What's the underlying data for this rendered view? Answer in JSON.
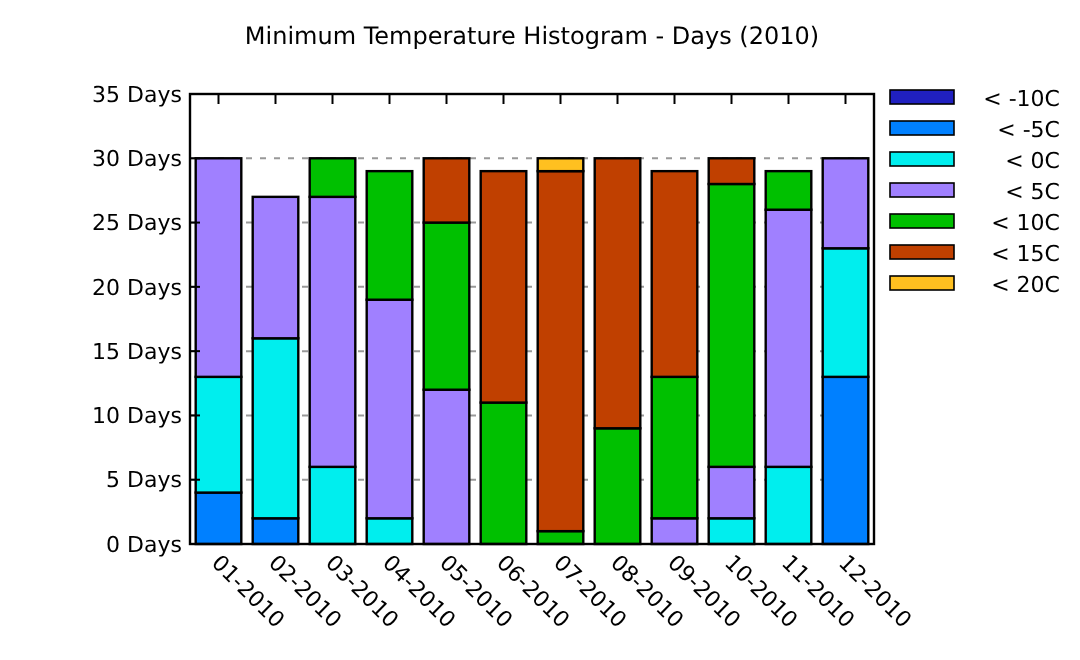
{
  "chart_data": {
    "type": "bar",
    "title": "Minimum Temperature Histogram - Days (2010)",
    "stacked": true,
    "grid": "y",
    "legend": "right",
    "categories": [
      "01-2010",
      "02-2010",
      "03-2010",
      "04-2010",
      "05-2010",
      "06-2010",
      "07-2010",
      "08-2010",
      "09-2010",
      "10-2010",
      "11-2010",
      "12-2010"
    ],
    "ylim": [
      0,
      35
    ],
    "yticks": [
      {
        "value": 0,
        "label": "0 Days"
      },
      {
        "value": 5,
        "label": "5 Days"
      },
      {
        "value": 10,
        "label": "10 Days"
      },
      {
        "value": 15,
        "label": "15 Days"
      },
      {
        "value": 20,
        "label": "20 Days"
      },
      {
        "value": 25,
        "label": "25 Days"
      },
      {
        "value": 30,
        "label": "30 Days"
      },
      {
        "value": 35,
        "label": "35 Days"
      }
    ],
    "series": [
      {
        "name": "< -10C",
        "color": "#2020c0",
        "values": [
          0,
          0,
          0,
          0,
          0,
          0,
          0,
          0,
          0,
          0,
          0,
          0
        ]
      },
      {
        "name": "< -5C",
        "color": "#0080ff",
        "values": [
          4,
          2,
          0,
          0,
          0,
          0,
          0,
          0,
          0,
          0,
          0,
          13
        ]
      },
      {
        "name": "< 0C",
        "color": "#00eeee",
        "values": [
          9,
          14,
          6,
          2,
          0,
          0,
          0,
          0,
          0,
          2,
          6,
          10
        ]
      },
      {
        "name": "< 5C",
        "color": "#a080ff",
        "values": [
          17,
          11,
          21,
          17,
          12,
          0,
          0,
          0,
          2,
          4,
          20,
          7
        ]
      },
      {
        "name": "< 10C",
        "color": "#00c000",
        "values": [
          0,
          0,
          3,
          10,
          13,
          11,
          1,
          9,
          11,
          22,
          3,
          0
        ]
      },
      {
        "name": "< 15C",
        "color": "#c04000",
        "values": [
          0,
          0,
          0,
          0,
          5,
          18,
          28,
          21,
          16,
          2,
          0,
          0
        ]
      },
      {
        "name": "< 20C",
        "color": "#ffc020",
        "values": [
          0,
          0,
          0,
          0,
          0,
          0,
          1,
          0,
          0,
          0,
          0,
          0
        ]
      }
    ]
  }
}
